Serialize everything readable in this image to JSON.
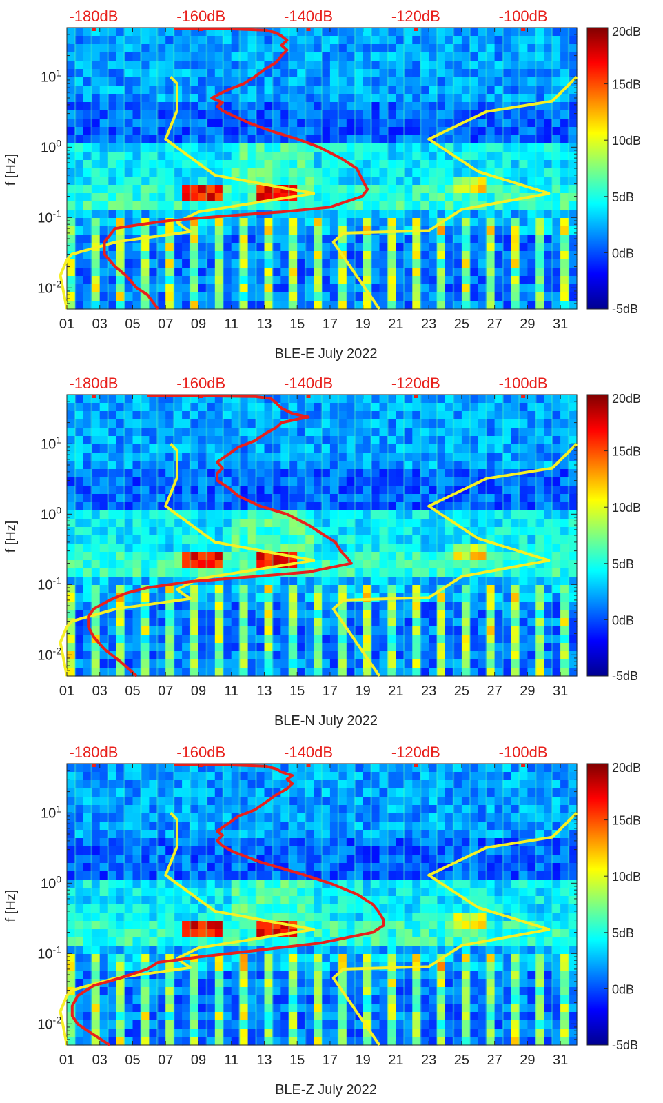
{
  "figure": {
    "colormap": "jet",
    "top_axis_color": "#e8201c",
    "noise_model_color": "#f6f025",
    "psd_curve_color": "#e8201c"
  },
  "chart_data": [
    {
      "type": "heatmap",
      "xlabel": "BLE-E July 2022",
      "ylabel": "f [Hz]",
      "x_ticks": [
        "01",
        "03",
        "05",
        "07",
        "09",
        "11",
        "13",
        "15",
        "17",
        "19",
        "21",
        "23",
        "25",
        "27",
        "29",
        "31"
      ],
      "xlim": [
        1,
        32
      ],
      "y_scale": "log",
      "ylim": [
        0.005,
        50
      ],
      "y_ticks": [
        "10-2",
        "10-1",
        "100",
        "101"
      ],
      "top_ticks": [
        "-180dB",
        "-160dB",
        "-140dB",
        "-120dB",
        "-100dB"
      ],
      "top_range_db": [
        -185,
        -90
      ],
      "colorbar": {
        "ticks": [
          "20dB",
          "15dB",
          "10dB",
          "5dB",
          "0dB",
          "-5dB"
        ],
        "range": [
          -5,
          20
        ]
      },
      "noise_model_curves": [
        {
          "points": [
            [
              1.0,
              0.005
            ],
            [
              0.6,
              0.015
            ],
            [
              1.0,
              0.025
            ],
            [
              1.3,
              0.03
            ],
            [
              4,
              0.045
            ],
            [
              8.5,
              0.063
            ],
            [
              7.7,
              0.085
            ],
            [
              9,
              0.12
            ],
            [
              16,
              0.22
            ],
            [
              10,
              0.4
            ],
            [
              7,
              1.3
            ],
            [
              7.7,
              3.3
            ],
            [
              7.7,
              8
            ],
            [
              7.3,
              10
            ]
          ]
        },
        {
          "points": [
            [
              20,
              0.005
            ],
            [
              17.2,
              0.045
            ],
            [
              17.8,
              0.06
            ],
            [
              23,
              0.065
            ],
            [
              25,
              0.13
            ],
            [
              30.3,
              0.22
            ],
            [
              26,
              0.45
            ],
            [
              23,
              1.3
            ],
            [
              26.5,
              3.2
            ],
            [
              30.5,
              4.5
            ],
            [
              32,
              10
            ]
          ]
        }
      ],
      "psd_curve": {
        "points": [
          [
            -168,
            0.005
          ],
          [
            -170,
            0.008
          ],
          [
            -172,
            0.01
          ],
          [
            -174,
            0.015
          ],
          [
            -176,
            0.02
          ],
          [
            -178,
            0.03
          ],
          [
            -178,
            0.045
          ],
          [
            -176,
            0.07
          ],
          [
            -171,
            0.08
          ],
          [
            -166,
            0.09
          ],
          [
            -159,
            0.1
          ],
          [
            -152,
            0.11
          ],
          [
            -145,
            0.12
          ],
          [
            -136,
            0.14
          ],
          [
            -130,
            0.2
          ],
          [
            -129,
            0.25
          ],
          [
            -130,
            0.35
          ],
          [
            -131,
            0.5
          ],
          [
            -134,
            0.7
          ],
          [
            -138,
            1.0
          ],
          [
            -142,
            1.3
          ],
          [
            -147,
            1.7
          ],
          [
            -151,
            2.2
          ],
          [
            -154,
            2.8
          ],
          [
            -156,
            3.3
          ],
          [
            -157,
            3.8
          ],
          [
            -156,
            4.3
          ],
          [
            -158,
            5
          ],
          [
            -156,
            6
          ],
          [
            -154,
            7
          ],
          [
            -152,
            8
          ],
          [
            -150,
            10
          ],
          [
            -148,
            13
          ],
          [
            -146,
            16
          ],
          [
            -145,
            20
          ],
          [
            -144,
            24
          ],
          [
            -145,
            28
          ],
          [
            -144,
            33
          ],
          [
            -145,
            38
          ],
          [
            -146,
            42
          ],
          [
            -148,
            46
          ],
          [
            -155,
            48
          ],
          [
            -165,
            48
          ]
        ]
      }
    },
    {
      "type": "heatmap",
      "xlabel": "BLE-N July 2022",
      "ylabel": "f [Hz]",
      "x_ticks": [
        "01",
        "03",
        "05",
        "07",
        "09",
        "11",
        "13",
        "15",
        "17",
        "19",
        "21",
        "23",
        "25",
        "27",
        "29",
        "31"
      ],
      "xlim": [
        1,
        32
      ],
      "y_scale": "log",
      "ylim": [
        0.005,
        50
      ],
      "y_ticks": [
        "10-2",
        "10-1",
        "100",
        "101"
      ],
      "top_ticks": [
        "-180dB",
        "-160dB",
        "-140dB",
        "-120dB",
        "-100dB"
      ],
      "top_range_db": [
        -185,
        -90
      ],
      "colorbar": {
        "ticks": [
          "20dB",
          "15dB",
          "10dB",
          "5dB",
          "0dB",
          "-5dB"
        ],
        "range": [
          -5,
          20
        ]
      },
      "noise_model_curves": [
        {
          "points": [
            [
              1.0,
              0.005
            ],
            [
              0.6,
              0.015
            ],
            [
              1.0,
              0.025
            ],
            [
              1.3,
              0.03
            ],
            [
              4,
              0.045
            ],
            [
              8.5,
              0.063
            ],
            [
              7.7,
              0.085
            ],
            [
              9,
              0.12
            ],
            [
              16,
              0.22
            ],
            [
              10,
              0.4
            ],
            [
              7,
              1.3
            ],
            [
              7.7,
              3.3
            ],
            [
              7.7,
              8
            ],
            [
              7.3,
              10
            ]
          ]
        },
        {
          "points": [
            [
              20,
              0.005
            ],
            [
              17.2,
              0.045
            ],
            [
              17.8,
              0.06
            ],
            [
              23,
              0.065
            ],
            [
              25,
              0.13
            ],
            [
              30.3,
              0.22
            ],
            [
              26,
              0.45
            ],
            [
              23,
              1.3
            ],
            [
              26.5,
              3.2
            ],
            [
              30.5,
              4.5
            ],
            [
              32,
              10
            ]
          ]
        }
      ],
      "psd_curve": {
        "points": [
          [
            -172,
            0.005
          ],
          [
            -175,
            0.008
          ],
          [
            -178,
            0.012
          ],
          [
            -180,
            0.018
          ],
          [
            -181,
            0.025
          ],
          [
            -181,
            0.035
          ],
          [
            -180,
            0.045
          ],
          [
            -177,
            0.06
          ],
          [
            -174,
            0.075
          ],
          [
            -170,
            0.09
          ],
          [
            -162,
            0.11
          ],
          [
            -150,
            0.13
          ],
          [
            -140,
            0.15
          ],
          [
            -132,
            0.2
          ],
          [
            -133,
            0.25
          ],
          [
            -134,
            0.3
          ],
          [
            -135,
            0.4
          ],
          [
            -137,
            0.5
          ],
          [
            -140,
            0.7
          ],
          [
            -144,
            1.0
          ],
          [
            -149,
            1.3
          ],
          [
            -153,
            1.8
          ],
          [
            -155,
            2.4
          ],
          [
            -157,
            3.0
          ],
          [
            -157,
            3.8
          ],
          [
            -156,
            4.5
          ],
          [
            -157,
            5.5
          ],
          [
            -155,
            7
          ],
          [
            -153,
            9
          ],
          [
            -150,
            11
          ],
          [
            -148,
            14
          ],
          [
            -146,
            17
          ],
          [
            -145,
            20
          ],
          [
            -140,
            24
          ],
          [
            -143,
            27
          ],
          [
            -145,
            32
          ],
          [
            -146,
            38
          ],
          [
            -147,
            44
          ],
          [
            -150,
            47
          ],
          [
            -160,
            48
          ],
          [
            -170,
            48
          ]
        ]
      }
    },
    {
      "type": "heatmap",
      "xlabel": "BLE-Z July 2022",
      "ylabel": "f [Hz]",
      "x_ticks": [
        "01",
        "03",
        "05",
        "07",
        "09",
        "11",
        "13",
        "15",
        "17",
        "19",
        "21",
        "23",
        "25",
        "27",
        "29",
        "31"
      ],
      "xlim": [
        1,
        32
      ],
      "y_scale": "log",
      "ylim": [
        0.005,
        50
      ],
      "y_ticks": [
        "10-2",
        "10-1",
        "100",
        "101"
      ],
      "top_ticks": [
        "-180dB",
        "-160dB",
        "-140dB",
        "-120dB",
        "-100dB"
      ],
      "top_range_db": [
        -185,
        -90
      ],
      "colorbar": {
        "ticks": [
          "20dB",
          "15dB",
          "10dB",
          "5dB",
          "0dB",
          "-5dB"
        ],
        "range": [
          -5,
          20
        ]
      },
      "noise_model_curves": [
        {
          "points": [
            [
              1.0,
              0.005
            ],
            [
              0.6,
              0.015
            ],
            [
              1.0,
              0.025
            ],
            [
              1.3,
              0.03
            ],
            [
              4,
              0.045
            ],
            [
              8.5,
              0.063
            ],
            [
              7.7,
              0.085
            ],
            [
              9,
              0.12
            ],
            [
              16,
              0.22
            ],
            [
              10,
              0.4
            ],
            [
              7,
              1.3
            ],
            [
              7.7,
              3.3
            ],
            [
              7.7,
              8
            ],
            [
              7.3,
              10
            ]
          ]
        },
        {
          "points": [
            [
              20,
              0.005
            ],
            [
              17.2,
              0.045
            ],
            [
              17.8,
              0.06
            ],
            [
              23,
              0.065
            ],
            [
              25,
              0.13
            ],
            [
              30.3,
              0.22
            ],
            [
              26,
              0.45
            ],
            [
              23,
              1.3
            ],
            [
              26.5,
              3.2
            ],
            [
              30.5,
              4.5
            ],
            [
              32,
              10
            ]
          ]
        }
      ],
      "psd_curve": {
        "points": [
          [
            -177,
            0.005
          ],
          [
            -180,
            0.007
          ],
          [
            -183,
            0.01
          ],
          [
            -184,
            0.013
          ],
          [
            -184,
            0.018
          ],
          [
            -183,
            0.025
          ],
          [
            -180,
            0.035
          ],
          [
            -175,
            0.045
          ],
          [
            -170,
            0.06
          ],
          [
            -168,
            0.075
          ],
          [
            -160,
            0.09
          ],
          [
            -150,
            0.11
          ],
          [
            -138,
            0.14
          ],
          [
            -128,
            0.2
          ],
          [
            -126,
            0.25
          ],
          [
            -126,
            0.3
          ],
          [
            -127,
            0.4
          ],
          [
            -128,
            0.5
          ],
          [
            -131,
            0.7
          ],
          [
            -136,
            1.0
          ],
          [
            -142,
            1.4
          ],
          [
            -149,
            2.0
          ],
          [
            -154,
            2.8
          ],
          [
            -156,
            3.4
          ],
          [
            -157,
            4.0
          ],
          [
            -156,
            4.8
          ],
          [
            -157,
            5.5
          ],
          [
            -155,
            7
          ],
          [
            -153,
            9
          ],
          [
            -150,
            11
          ],
          [
            -148,
            14
          ],
          [
            -146,
            18
          ],
          [
            -144,
            22
          ],
          [
            -143,
            26
          ],
          [
            -144,
            30
          ],
          [
            -143,
            34
          ],
          [
            -145,
            38
          ],
          [
            -146,
            42
          ],
          [
            -148,
            46
          ],
          [
            -155,
            48
          ],
          [
            -165,
            48
          ]
        ]
      }
    }
  ]
}
